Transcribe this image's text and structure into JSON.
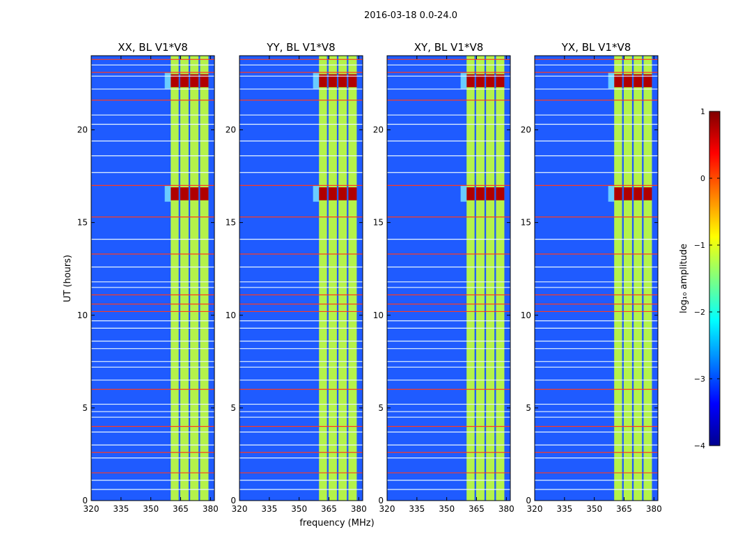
{
  "chart_data": {
    "type": "heatmap",
    "suptitle": "2016-03-18 0.0-24.0",
    "xlabel": "frequency (MHz)",
    "ylabel": "UT (hours)",
    "xlim": [
      320,
      382
    ],
    "ylim": [
      0,
      24
    ],
    "xticks": [
      320,
      335,
      350,
      365,
      380
    ],
    "yticks": [
      0,
      5,
      10,
      15,
      20
    ],
    "panels": [
      {
        "title": "XX, BL V1*V8"
      },
      {
        "title": "YY, BL V1*V8"
      },
      {
        "title": "XY, BL V1*V8"
      },
      {
        "title": "YX, BL V1*V8"
      }
    ],
    "colorbar": {
      "label": "log₁₀ amplitude",
      "range": [
        -4,
        1
      ],
      "ticks": [
        "1",
        "0",
        "−1",
        "−2",
        "−3",
        "−4"
      ],
      "colormap": "jet"
    },
    "features": {
      "band_segments_mhz": [
        [
          360,
          364
        ],
        [
          364.8,
          369
        ],
        [
          369.8,
          374
        ],
        [
          374.8,
          379
        ]
      ],
      "strong_rfi_hours": [
        [
          22.3,
          23.0
        ],
        [
          16.2,
          16.9
        ]
      ],
      "red_lines_hours": [
        23.8,
        23.1,
        21.6,
        17.0,
        15.3,
        13.3,
        11.1,
        10.6,
        10.2,
        6.0,
        4.0,
        2.6,
        1.5
      ],
      "white_lines_hours": [
        23.5,
        22.9,
        22.2,
        20.8,
        20.3,
        19.4,
        18.6,
        17.7,
        14.1,
        12.6,
        11.8,
        11.5,
        9.7,
        9.3,
        8.6,
        8.2,
        7.5,
        7.2,
        6.5,
        5.2,
        4.8,
        4.5,
        3.7,
        3.0,
        2.3,
        1.1,
        0.6
      ]
    }
  }
}
